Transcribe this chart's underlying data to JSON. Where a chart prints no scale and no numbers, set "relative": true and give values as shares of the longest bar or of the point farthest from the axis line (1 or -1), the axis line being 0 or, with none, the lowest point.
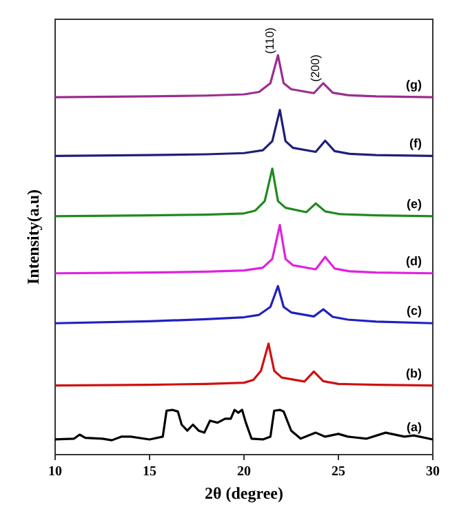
{
  "chart_data": {
    "type": "line",
    "relative": true,
    "xlabel": "2θ (degree)",
    "ylabel": "Intensity(a.u)",
    "xlim": [
      10,
      30
    ],
    "xticks": [
      10,
      15,
      20,
      25,
      30
    ],
    "grid": false,
    "legend": false,
    "marker": "none",
    "line_style": "solid",
    "annotations": [
      {
        "text": "(110)",
        "x": 21.8,
        "y": 1.0
      },
      {
        "text": "(200)",
        "x": 24.2,
        "y": 0.93
      }
    ],
    "series": [
      {
        "name": "(a)",
        "color": "#000000",
        "x": [
          10,
          11,
          11.3,
          11.6,
          12.5,
          13,
          13.5,
          14,
          15,
          15.7,
          15.9,
          16.2,
          16.5,
          16.7,
          17,
          17.3,
          17.6,
          17.9,
          18.2,
          18.6,
          19,
          19.3,
          19.5,
          19.7,
          19.9,
          20.1,
          20.4,
          21,
          21.4,
          21.6,
          21.9,
          22.1,
          22.5,
          23,
          23.8,
          24.3,
          25,
          25.5,
          26.5,
          27.5,
          28.5,
          29,
          30
        ],
        "values": [
          0.038,
          0.04,
          0.05,
          0.042,
          0.04,
          0.036,
          0.045,
          0.045,
          0.038,
          0.045,
          0.11,
          0.112,
          0.108,
          0.075,
          0.06,
          0.075,
          0.06,
          0.055,
          0.085,
          0.08,
          0.09,
          0.09,
          0.112,
          0.105,
          0.112,
          0.08,
          0.04,
          0.038,
          0.045,
          0.11,
          0.112,
          0.108,
          0.06,
          0.04,
          0.055,
          0.045,
          0.052,
          0.045,
          0.04,
          0.055,
          0.045,
          0.048,
          0.038
        ]
      },
      {
        "name": "(b)",
        "color": "#d01010",
        "x": [
          10,
          15,
          18,
          20,
          20.5,
          20.9,
          21.3,
          21.6,
          22,
          23.2,
          23.7,
          24.2,
          25,
          27,
          30
        ],
        "values": [
          0.173,
          0.175,
          0.177,
          0.18,
          0.187,
          0.21,
          0.278,
          0.21,
          0.193,
          0.183,
          0.208,
          0.184,
          0.177,
          0.175,
          0.173
        ]
      },
      {
        "name": "(c)",
        "color": "#2020c0",
        "x": [
          10,
          15,
          18,
          20,
          20.8,
          21.4,
          21.8,
          22.1,
          22.5,
          23.7,
          24.2,
          24.7,
          25.5,
          27,
          30
        ],
        "values": [
          0.329,
          0.334,
          0.339,
          0.344,
          0.35,
          0.37,
          0.422,
          0.37,
          0.356,
          0.346,
          0.364,
          0.345,
          0.338,
          0.333,
          0.329
        ]
      },
      {
        "name": "(d)",
        "color": "#e020e0",
        "x": [
          10,
          15,
          18,
          20,
          21,
          21.5,
          21.9,
          22.2,
          22.6,
          23.8,
          24.3,
          24.8,
          25.6,
          27,
          30
        ],
        "values": [
          0.454,
          0.456,
          0.458,
          0.461,
          0.468,
          0.49,
          0.575,
          0.49,
          0.474,
          0.464,
          0.495,
          0.466,
          0.459,
          0.456,
          0.454
        ]
      },
      {
        "name": "(e)",
        "color": "#1f8a1f",
        "x": [
          10,
          15,
          18,
          20,
          20.6,
          21.1,
          21.5,
          21.8,
          22.2,
          23.3,
          23.8,
          24.3,
          25.1,
          27,
          30
        ],
        "values": [
          0.597,
          0.599,
          0.601,
          0.604,
          0.611,
          0.635,
          0.716,
          0.635,
          0.618,
          0.607,
          0.629,
          0.609,
          0.602,
          0.599,
          0.597
        ]
      },
      {
        "name": "(f)",
        "color": "#1f1f7a",
        "x": [
          10,
          15,
          18,
          20,
          21,
          21.5,
          21.9,
          22.2,
          22.6,
          23.8,
          24.3,
          24.8,
          25.6,
          27,
          30
        ],
        "values": [
          0.748,
          0.75,
          0.752,
          0.755,
          0.762,
          0.785,
          0.863,
          0.785,
          0.768,
          0.758,
          0.786,
          0.76,
          0.753,
          0.75,
          0.748
        ]
      },
      {
        "name": "(g)",
        "color": "#9b2d8f",
        "x": [
          10,
          15,
          18,
          20,
          20.8,
          21.4,
          21.8,
          22.1,
          22.5,
          23.7,
          24.2,
          24.7,
          25.5,
          27,
          30
        ],
        "values": [
          0.895,
          0.897,
          0.899,
          0.902,
          0.908,
          0.93,
          1.0,
          0.93,
          0.915,
          0.905,
          0.93,
          0.906,
          0.9,
          0.897,
          0.895
        ]
      }
    ]
  }
}
